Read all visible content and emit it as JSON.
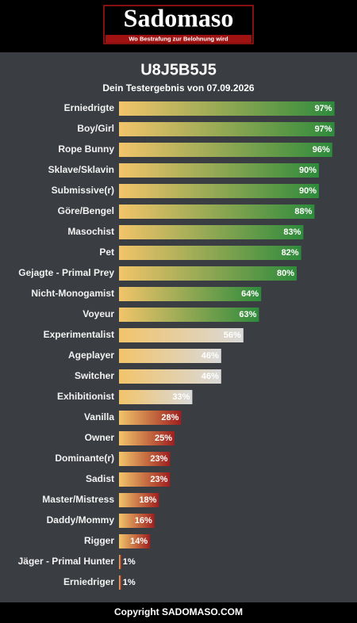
{
  "header": {
    "logo": "Sadomaso",
    "tagline": "Wo Bestrafung zur Belohnung wird"
  },
  "chart_data": {
    "type": "bar",
    "orientation": "horizontal",
    "title": "U8J5B5J5",
    "subtitle": "Dein Testergebnis von 07.09.2026",
    "categories": [
      "Erniedrigte",
      "Boy/Girl",
      "Rope Bunny",
      "Sklave/Sklavin",
      "Submissive(r)",
      "Göre/Bengel",
      "Masochist",
      "Pet",
      "Gejagte - Primal Prey",
      "Nicht-Monogamist",
      "Voyeur",
      "Experimentalist",
      "Ageplayer",
      "Switcher",
      "Exhibitionist",
      "Vanilla",
      "Owner",
      "Dominante(r)",
      "Sadist",
      "Master/Mistress",
      "Daddy/Mommy",
      "Rigger",
      "Jäger - Primal Hunter",
      "Erniedriger"
    ],
    "values": [
      97,
      97,
      96,
      90,
      90,
      88,
      83,
      82,
      80,
      64,
      63,
      56,
      46,
      46,
      33,
      28,
      25,
      23,
      23,
      18,
      16,
      14,
      1,
      1
    ],
    "value_labels": [
      "97%",
      "97%",
      "96%",
      "90%",
      "90%",
      "88%",
      "83%",
      "82%",
      "80%",
      "64%",
      "63%",
      "56%",
      "46%",
      "46%",
      "33%",
      "28%",
      "25%",
      "23%",
      "23%",
      "18%",
      "16%",
      "14%",
      "1%",
      "1%"
    ],
    "colors": [
      "#2e8b3c",
      "#2e8b3c",
      "#2e8b3c",
      "#2e8b3c",
      "#2e8b3c",
      "#2e8b3c",
      "#2e8b3c",
      "#2e8b3c",
      "#2e8b3c",
      "#2e8b3c",
      "#2e8b3c",
      "#d9d9d9",
      "#d9d9d9",
      "#d9d9d9",
      "#d9d9d9",
      "#9e1f1f",
      "#9e1f1f",
      "#9e1f1f",
      "#9e1f1f",
      "#9e1f1f",
      "#9e1f1f",
      "#9e1f1f",
      "#9e1f1f",
      "#9e1f1f"
    ],
    "xlim": [
      0,
      100
    ]
  },
  "footer": {
    "copyright": "Copyright SADOMASO.COM"
  }
}
